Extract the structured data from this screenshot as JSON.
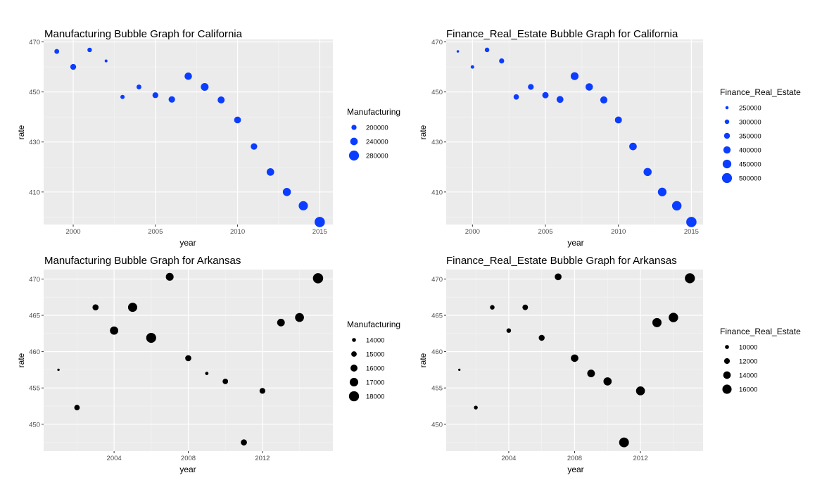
{
  "chart_data": [
    {
      "type": "scatter",
      "title": "Manufacturing Bubble Graph for California",
      "xlabel": "year",
      "ylabel": "rate",
      "xlim": [
        1998.2,
        2015.8
      ],
      "ylim": [
        397,
        471
      ],
      "x_ticks": [
        2000,
        2005,
        2010,
        2015
      ],
      "y_ticks": [
        410,
        430,
        450,
        470
      ],
      "color": "#0a3dff",
      "legend": {
        "title": "Manufacturing",
        "placement": "right",
        "values": [
          200000,
          240000,
          280000
        ],
        "labels": [
          "200000",
          "240000",
          "280000"
        ]
      },
      "size_range": [
        150000,
        290000
      ],
      "x": [
        1999,
        2000,
        2001,
        2002,
        2003,
        2004,
        2005,
        2006,
        2007,
        2008,
        2009,
        2010,
        2011,
        2012,
        2013,
        2014,
        2015
      ],
      "y": [
        466.2,
        460.0,
        466.8,
        462.4,
        448.0,
        452.0,
        448.7,
        447.0,
        456.3,
        452.0,
        446.8,
        438.8,
        428.2,
        418.0,
        410.0,
        404.5,
        398.0
      ],
      "size": [
        195000,
        212000,
        190000,
        162000,
        185000,
        195000,
        212000,
        222000,
        238000,
        244000,
        232000,
        228000,
        222000,
        240000,
        250000,
        268000,
        285000
      ]
    },
    {
      "type": "scatter",
      "title": "Finance_Real_Estate Bubble Graph for California",
      "xlabel": "year",
      "ylabel": "rate",
      "xlim": [
        1998.2,
        2015.8
      ],
      "ylim": [
        397,
        471
      ],
      "x_ticks": [
        2000,
        2005,
        2010,
        2015
      ],
      "y_ticks": [
        410,
        430,
        450,
        470
      ],
      "color": "#0a3dff",
      "legend": {
        "title": "Finance_Real_Estate",
        "placement": "right",
        "values": [
          250000,
          300000,
          350000,
          400000,
          450000,
          500000
        ],
        "labels": [
          "250000",
          "300000",
          "350000",
          "400000",
          "450000",
          "500000"
        ]
      },
      "size_range": [
        210000,
        520000
      ],
      "x": [
        1999,
        2000,
        2001,
        2002,
        2003,
        2004,
        2005,
        2006,
        2007,
        2008,
        2009,
        2010,
        2011,
        2012,
        2013,
        2014,
        2015
      ],
      "y": [
        466.2,
        460.0,
        466.8,
        462.4,
        448.0,
        452.0,
        448.7,
        447.0,
        456.3,
        452.0,
        446.8,
        438.8,
        428.2,
        418.0,
        410.0,
        404.5,
        398.0
      ],
      "size": [
        225000,
        262000,
        300000,
        320000,
        330000,
        345000,
        365000,
        385000,
        420000,
        405000,
        395000,
        390000,
        410000,
        430000,
        450000,
        480000,
        510000
      ]
    },
    {
      "type": "scatter",
      "title": "Manufacturing Bubble Graph for Arkansas",
      "xlabel": "year",
      "ylabel": "rate",
      "xlim": [
        2000.2,
        2015.8
      ],
      "ylim": [
        446.3,
        471.3
      ],
      "x_ticks": [
        2004,
        2008,
        2012
      ],
      "y_ticks": [
        450,
        455,
        460,
        465,
        470
      ],
      "color": "#000000",
      "legend": {
        "title": "Manufacturing",
        "placement": "right",
        "values": [
          14000,
          15000,
          16000,
          17000,
          18000
        ],
        "labels": [
          "14000",
          "15000",
          "16000",
          "17000",
          "18000"
        ]
      },
      "size_range": [
        12800,
        18300
      ],
      "x": [
        2001,
        2002,
        2003,
        2004,
        2005,
        2006,
        2007,
        2008,
        2009,
        2010,
        2011,
        2012,
        2013,
        2014,
        2015
      ],
      "y": [
        457.5,
        452.3,
        466.1,
        462.9,
        466.1,
        461.9,
        470.3,
        459.1,
        457.0,
        455.9,
        447.5,
        454.6,
        464.0,
        464.7,
        470.1
      ],
      "size": [
        13000,
        15000,
        15400,
        16800,
        17400,
        17900,
        16500,
        15400,
        13600,
        15000,
        15400,
        15200,
        16400,
        17200,
        18100
      ]
    },
    {
      "type": "scatter",
      "title": "Finance_Real_Estate Bubble Graph for Arkansas",
      "xlabel": "year",
      "ylabel": "rate",
      "xlim": [
        2000.2,
        2015.8
      ],
      "ylim": [
        446.3,
        471.3
      ],
      "x_ticks": [
        2004,
        2008,
        2012
      ],
      "y_ticks": [
        450,
        455,
        460,
        465,
        470
      ],
      "color": "#000000",
      "legend": {
        "title": "Finance_Real_Estate",
        "placement": "right",
        "values": [
          10000,
          12000,
          14000,
          16000
        ],
        "labels": [
          "10000",
          "12000",
          "14000",
          "16000"
        ]
      },
      "size_range": [
        7800,
        17500
      ],
      "x": [
        2001,
        2002,
        2003,
        2004,
        2005,
        2006,
        2007,
        2008,
        2009,
        2010,
        2011,
        2012,
        2013,
        2014,
        2015
      ],
      "y": [
        457.5,
        452.3,
        466.1,
        462.9,
        466.1,
        461.9,
        470.3,
        459.1,
        457.0,
        455.9,
        447.5,
        454.6,
        464.0,
        464.7,
        470.1
      ],
      "size": [
        8000,
        9800,
        10600,
        10600,
        11800,
        12200,
        13200,
        14000,
        14200,
        14800,
        16600,
        15600,
        15900,
        16200,
        16900
      ]
    }
  ]
}
